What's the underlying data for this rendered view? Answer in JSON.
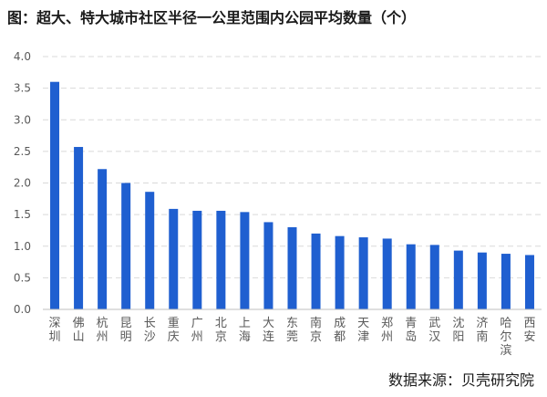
{
  "chart_data": {
    "type": "bar",
    "title": "图：超大、特大城市社区半径一公里范围内公园平均数量（个）",
    "categories": [
      "深圳",
      "佛山",
      "杭州",
      "昆明",
      "长沙",
      "重庆",
      "广州",
      "北京",
      "上海",
      "大连",
      "东莞",
      "南京",
      "成都",
      "天津",
      "郑州",
      "青岛",
      "武汉",
      "沈阳",
      "济南",
      "哈尔滨",
      "西安"
    ],
    "values": [
      3.6,
      2.57,
      2.22,
      2.0,
      1.86,
      1.59,
      1.56,
      1.56,
      1.54,
      1.38,
      1.3,
      1.2,
      1.16,
      1.14,
      1.12,
      1.03,
      1.02,
      0.93,
      0.9,
      0.88,
      0.86
    ],
    "ylim": [
      0,
      4.0
    ],
    "yticks": [
      "0.0",
      "0.5",
      "1.0",
      "1.5",
      "2.0",
      "2.5",
      "3.0",
      "3.5",
      "4.0"
    ],
    "grid": true,
    "bar_color": "#1f5fd0",
    "grid_color": "#d9d9d9",
    "source": "数据来源：贝壳研究院"
  }
}
